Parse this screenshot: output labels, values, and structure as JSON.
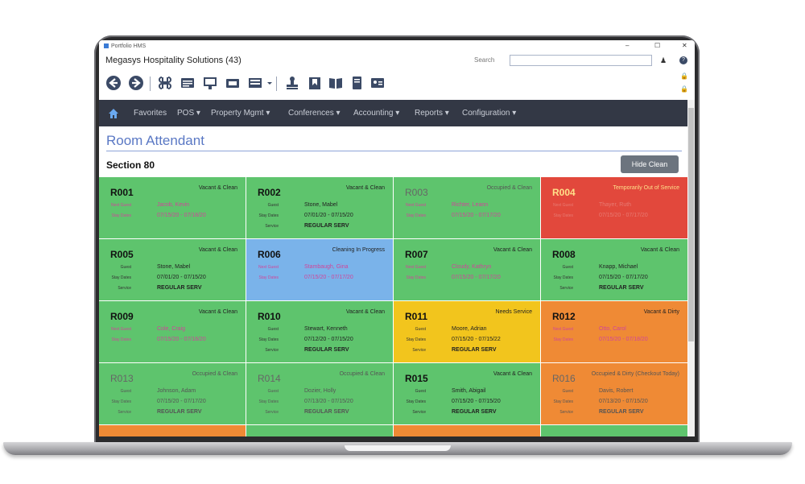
{
  "window": {
    "title": "Portfolio HMS",
    "minimize": "–",
    "maximize": "☐",
    "close": "✕"
  },
  "header": {
    "company": "Megasys Hospitality Solutions (43)",
    "search_label": "Search",
    "search_value": "",
    "search_placeholder": ""
  },
  "toolbar": {
    "icons": [
      "back-arrow-icon",
      "forward-arrow-icon",
      "command-icon",
      "list-icon",
      "board-icon",
      "register-icon",
      "card-list-icon",
      "caret-icon",
      "stamp-icon",
      "bookmark-icon",
      "book-icon",
      "document-icon",
      "id-card-icon"
    ]
  },
  "nav": {
    "home_icon": "home-icon",
    "items": [
      "Favorites",
      "POS ▾",
      "Property Mgmt ▾",
      "Conferences ▾",
      "Accounting ▾",
      "Reports ▾",
      "Configuration ▾"
    ]
  },
  "page": {
    "title": "Room Attendant",
    "section": "Section 80",
    "hide_clean_label": "Hide Clean"
  },
  "labels": {
    "guest": "Guest",
    "next_guest": "Next Guest",
    "stay_dates": "Stay Dates",
    "service": "Service"
  },
  "rooms": [
    {
      "room": "R001",
      "status": "Vacant & Clean",
      "guest": "Jacob, Kevin",
      "dates": "07/15/20 - 07/18/20",
      "service": "",
      "color": "green",
      "next": true,
      "dim": false
    },
    {
      "room": "R002",
      "status": "Vacant & Clean",
      "guest": "Stone, Mabel",
      "dates": "07/01/20 - 07/15/20",
      "service": "REGULAR SERV",
      "color": "green",
      "next": false,
      "dim": false
    },
    {
      "room": "R003",
      "status": "Occupied & Clean",
      "guest": "Richter, Leann",
      "dates": "07/15/20 - 07/17/20",
      "service": "",
      "color": "green",
      "next": true,
      "dim": true
    },
    {
      "room": "R004",
      "status": "Temporarily Out of Service",
      "guest": "Thayer, Ruth",
      "dates": "07/15/20 - 07/17/20",
      "service": "",
      "color": "red",
      "next": true,
      "dim": false
    },
    {
      "room": "R005",
      "status": "Vacant & Clean",
      "guest": "Stone, Mabel",
      "dates": "07/01/20 - 07/15/20",
      "service": "REGULAR SERV",
      "color": "green",
      "next": false,
      "dim": false
    },
    {
      "room": "R006",
      "status": "Cleaning In Progress",
      "guest": "Stambaugh, Gina",
      "dates": "07/15/20 - 07/17/20",
      "service": "",
      "color": "blue",
      "next": true,
      "dim": false
    },
    {
      "room": "R007",
      "status": "Vacant & Clean",
      "guest": "Cloudy, Kathryn",
      "dates": "07/15/20 - 07/17/20",
      "service": "",
      "color": "green",
      "next": true,
      "dim": false
    },
    {
      "room": "R008",
      "status": "Vacant & Clean",
      "guest": "Knapp, Michael",
      "dates": "07/15/20 - 07/17/20",
      "service": "REGULAR SERV",
      "color": "green",
      "next": false,
      "dim": false
    },
    {
      "room": "R009",
      "status": "Vacant & Clean",
      "guest": "Cole, Craig",
      "dates": "07/15/20 - 07/18/20",
      "service": "",
      "color": "green",
      "next": true,
      "dim": false
    },
    {
      "room": "R010",
      "status": "Vacant & Clean",
      "guest": "Stewart, Kenneth",
      "dates": "07/12/20 - 07/15/20",
      "service": "REGULAR SERV",
      "color": "green",
      "next": false,
      "dim": false
    },
    {
      "room": "R011",
      "status": "Needs Service",
      "guest": "Moore, Adrian",
      "dates": "07/15/20 - 07/15/22",
      "service": "REGULAR SERV",
      "color": "yellow",
      "next": false,
      "dim": false
    },
    {
      "room": "R012",
      "status": "Vacant & Dirty",
      "guest": "Otto, Carol",
      "dates": "07/15/20 - 07/18/20",
      "service": "",
      "color": "orange",
      "next": true,
      "dim": false
    },
    {
      "room": "R013",
      "status": "Occupied & Clean",
      "guest": "Johnson, Adam",
      "dates": "07/15/20 - 07/17/20",
      "service": "REGULAR SERV",
      "color": "green",
      "next": false,
      "dim": true
    },
    {
      "room": "R014",
      "status": "Occupied & Clean",
      "guest": "Dozier, Holly",
      "dates": "07/13/20 - 07/15/20",
      "service": "REGULAR SERV",
      "color": "green",
      "next": false,
      "dim": true
    },
    {
      "room": "R015",
      "status": "Vacant & Clean",
      "guest": "Smith, Abigail",
      "dates": "07/15/20 - 07/15/20",
      "service": "REGULAR SERV",
      "color": "green",
      "next": false,
      "dim": false
    },
    {
      "room": "R016",
      "status": "Occupied & Dirty (Checkout Today)",
      "guest": "Davis, Robert",
      "dates": "07/13/20 - 07/15/20",
      "service": "REGULAR SERV",
      "color": "orange",
      "next": false,
      "dim": true
    }
  ],
  "bottom_row_colors": [
    "orange",
    "green",
    "orange",
    "green"
  ],
  "colors": {
    "green": "#5ec46d",
    "blue": "#7ab3ea",
    "yellow": "#f2c51d",
    "orange": "#ef8a35",
    "red": "#e2483c",
    "nav_bg": "#333845",
    "title_blue": "#5a78c4"
  }
}
